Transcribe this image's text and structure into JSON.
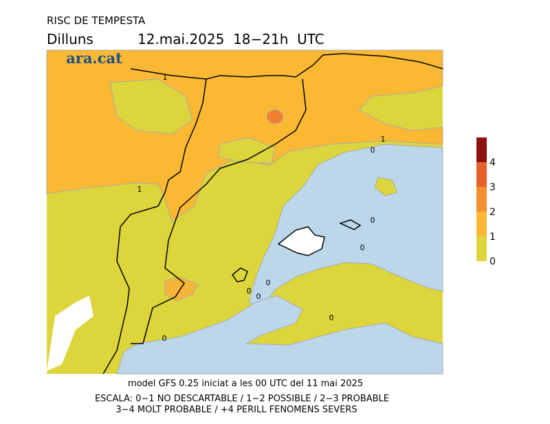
{
  "header": {
    "title": "RISC DE TEMPESTA",
    "day": "Dilluns",
    "date": "12.mai.2025  18−21h  UTC"
  },
  "logo": "ara.cat",
  "contour_labels": [
    "1",
    "1",
    "1",
    "0",
    "0",
    "0",
    "0",
    "0",
    "0",
    "0",
    "0"
  ],
  "legend": {
    "labels": [
      "4",
      "3",
      "2",
      "1",
      "0"
    ],
    "colors": [
      "#8b1212",
      "#e4612a",
      "#f39030",
      "#fbb933",
      "#dcd53c"
    ]
  },
  "footer": [
    "model GFS 0.25 iniciat a les 00 UTC del 11 mai 2025",
    "ESCALA: 0−1 NO DESCARTABLE / 1−2 POSSIBLE / 2−3 PROBABLE",
    "3−4 MOLT PROBABLE / +4 PERILL FENOMENS SEVERS"
  ]
}
